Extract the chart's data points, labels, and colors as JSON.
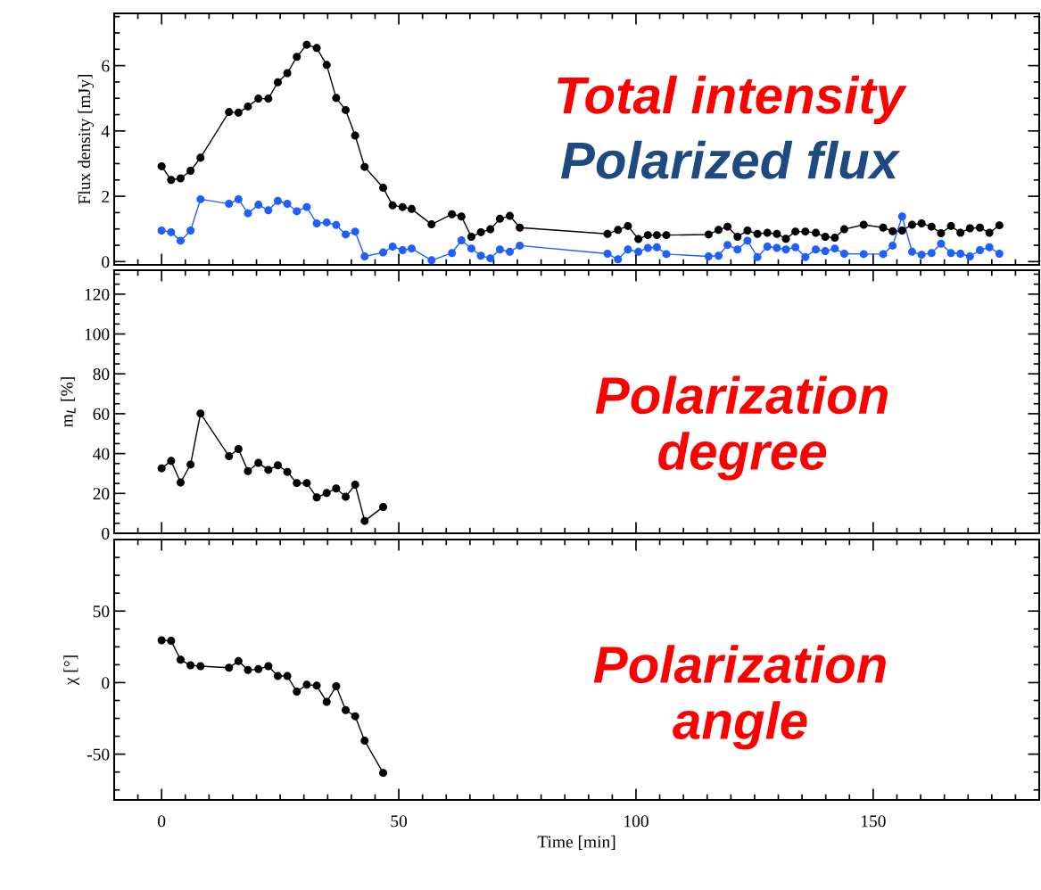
{
  "chart_data": [
    {
      "type": "line",
      "ylabel": "Flux density [mJy]",
      "annotations": [
        "Total intensity",
        "Polarized flux"
      ],
      "marker": "circle",
      "line_style": "solid",
      "grid": false,
      "legend": false,
      "tick_labels": "y",
      "xlim": [
        -10,
        185
      ],
      "ylim": [
        -0.1,
        7.6
      ],
      "xticks": [
        {
          "value": -5,
          "label": null
        },
        0,
        {
          "value": 5,
          "label": null
        },
        {
          "value": 10,
          "label": null
        },
        {
          "value": 15,
          "label": null
        },
        {
          "value": 20,
          "label": null
        },
        {
          "value": 25,
          "label": null
        },
        {
          "value": 30,
          "label": null
        },
        {
          "value": 35,
          "label": null
        },
        {
          "value": 40,
          "label": null
        },
        {
          "value": 45,
          "label": null
        },
        50,
        {
          "value": 55,
          "label": null
        },
        {
          "value": 60,
          "label": null
        },
        {
          "value": 65,
          "label": null
        },
        {
          "value": 70,
          "label": null
        },
        {
          "value": 75,
          "label": null
        },
        {
          "value": 80,
          "label": null
        },
        {
          "value": 85,
          "label": null
        },
        {
          "value": 90,
          "label": null
        },
        {
          "value": 95,
          "label": null
        },
        100,
        {
          "value": 105,
          "label": null
        },
        {
          "value": 110,
          "label": null
        },
        {
          "value": 115,
          "label": null
        },
        {
          "value": 120,
          "label": null
        },
        {
          "value": 125,
          "label": null
        },
        {
          "value": 130,
          "label": null
        },
        {
          "value": 135,
          "label": null
        },
        {
          "value": 140,
          "label": null
        },
        {
          "value": 145,
          "label": null
        },
        150,
        {
          "value": 155,
          "label": null
        },
        {
          "value": 160,
          "label": null
        },
        {
          "value": 165,
          "label": null
        },
        {
          "value": 170,
          "label": null
        },
        {
          "value": 175,
          "label": null
        },
        {
          "value": 180,
          "label": null
        }
      ],
      "yticks": [
        0,
        {
          "value": 0.5,
          "label": null
        },
        {
          "value": 1,
          "label": null
        },
        {
          "value": 1.5,
          "label": null
        },
        2,
        {
          "value": 2.5,
          "label": null
        },
        {
          "value": 3,
          "label": null
        },
        {
          "value": 3.5,
          "label": null
        },
        4,
        {
          "value": 4.5,
          "label": null
        },
        {
          "value": 5,
          "label": null
        },
        {
          "value": 5.5,
          "label": null
        },
        6,
        {
          "value": 6.5,
          "label": null
        },
        {
          "value": 7,
          "label": null
        },
        {
          "value": 7.5,
          "label": null
        }
      ],
      "x": [
        0,
        2,
        4,
        6.1,
        8.2,
        14.2,
        16.2,
        18.2,
        20.4,
        22.5,
        24.5,
        26.5,
        28.5,
        30.6,
        32.7,
        34.8,
        36.8,
        38.8,
        40.8,
        42.8,
        46.7,
        48.7,
        50.8,
        52.7,
        56.9,
        61.2,
        63.2,
        65.3,
        67.3,
        69.3,
        71.3,
        73.4,
        75.5,
        94.0,
        96.2,
        98.3,
        100.5,
        102.5,
        104.4,
        106.4,
        115.3,
        117.4,
        119.3,
        121.4,
        123.5,
        125.6,
        127.7,
        129.7,
        131.6,
        133.6,
        135.7,
        137.9,
        139.9,
        141.9,
        143.9,
        148.0,
        152.1,
        154.1,
        156.1,
        158.2,
        160.2,
        162.3,
        164.3,
        166.4,
        168.4,
        170.4,
        172.5,
        174.5,
        176.6
      ],
      "series": [
        {
          "color": "#000000",
          "values": [
            2.92,
            2.5,
            2.55,
            2.78,
            3.18,
            4.58,
            4.56,
            4.75,
            4.99,
            4.99,
            5.49,
            5.77,
            6.27,
            6.64,
            6.54,
            6.02,
            5.01,
            4.64,
            3.86,
            2.9,
            2.26,
            1.72,
            1.67,
            1.61,
            1.14,
            1.45,
            1.38,
            0.76,
            0.9,
            0.99,
            1.31,
            1.4,
            1.04,
            0.85,
            0.97,
            1.09,
            0.69,
            0.81,
            0.81,
            0.81,
            0.83,
            0.97,
            1.07,
            0.76,
            0.95,
            0.85,
            0.88,
            0.85,
            0.7,
            0.92,
            0.92,
            0.88,
            0.76,
            0.73,
            0.99,
            1.13,
            1.04,
            0.93,
            0.95,
            1.13,
            1.17,
            1.07,
            0.87,
            1.09,
            0.88,
            1.02,
            1.04,
            0.88,
            1.11
          ]
        },
        {
          "color": "#1f5fff",
          "values": [
            0.95,
            0.9,
            0.64,
            0.95,
            1.91,
            1.77,
            1.91,
            1.48,
            1.74,
            1.57,
            1.86,
            1.77,
            1.54,
            1.67,
            1.17,
            1.2,
            1.12,
            0.83,
            0.92,
            0.16,
            0.28,
            0.46,
            0.35,
            0.4,
            0.04,
            0.26,
            0.65,
            0.4,
            0.18,
            0.1,
            0.37,
            0.3,
            0.49,
            0.24,
            0.07,
            0.37,
            0.3,
            0.42,
            0.44,
            0.23,
            0.16,
            0.18,
            0.51,
            0.37,
            0.64,
            0.14,
            0.46,
            0.42,
            0.37,
            0.44,
            0.14,
            0.37,
            0.32,
            0.4,
            0.24,
            0.23,
            0.23,
            0.49,
            1.38,
            0.3,
            0.21,
            0.26,
            0.55,
            0.26,
            0.24,
            0.16,
            0.35,
            0.44,
            0.24
          ]
        }
      ]
    },
    {
      "type": "line",
      "ylabel": "m$_{L}$ [%]",
      "annotations": [
        "Polarization degree"
      ],
      "marker": "circle",
      "line_style": "solid",
      "grid": false,
      "legend": false,
      "tick_labels": "y",
      "xlim": [
        -10,
        185
      ],
      "ylim": [
        0,
        132
      ],
      "xticks": [
        {
          "value": -5,
          "label": null
        },
        0,
        {
          "value": 5,
          "label": null
        },
        {
          "value": 10,
          "label": null
        },
        {
          "value": 15,
          "label": null
        },
        {
          "value": 20,
          "label": null
        },
        {
          "value": 25,
          "label": null
        },
        {
          "value": 30,
          "label": null
        },
        {
          "value": 35,
          "label": null
        },
        {
          "value": 40,
          "label": null
        },
        {
          "value": 45,
          "label": null
        },
        50,
        {
          "value": 55,
          "label": null
        },
        {
          "value": 60,
          "label": null
        },
        {
          "value": 65,
          "label": null
        },
        {
          "value": 70,
          "label": null
        },
        {
          "value": 75,
          "label": null
        },
        {
          "value": 80,
          "label": null
        },
        {
          "value": 85,
          "label": null
        },
        {
          "value": 90,
          "label": null
        },
        {
          "value": 95,
          "label": null
        },
        100,
        {
          "value": 105,
          "label": null
        },
        {
          "value": 110,
          "label": null
        },
        {
          "value": 115,
          "label": null
        },
        {
          "value": 120,
          "label": null
        },
        {
          "value": 125,
          "label": null
        },
        {
          "value": 130,
          "label": null
        },
        {
          "value": 135,
          "label": null
        },
        {
          "value": 140,
          "label": null
        },
        {
          "value": 145,
          "label": null
        },
        150,
        {
          "value": 155,
          "label": null
        },
        {
          "value": 160,
          "label": null
        },
        {
          "value": 165,
          "label": null
        },
        {
          "value": 170,
          "label": null
        },
        {
          "value": 175,
          "label": null
        },
        {
          "value": 180,
          "label": null
        }
      ],
      "yticks": [
        0,
        {
          "value": 5,
          "label": null
        },
        {
          "value": 10,
          "label": null
        },
        {
          "value": 15,
          "label": null
        },
        20,
        {
          "value": 25,
          "label": null
        },
        {
          "value": 30,
          "label": null
        },
        {
          "value": 35,
          "label": null
        },
        40,
        {
          "value": 45,
          "label": null
        },
        {
          "value": 50,
          "label": null
        },
        {
          "value": 55,
          "label": null
        },
        60,
        {
          "value": 65,
          "label": null
        },
        {
          "value": 70,
          "label": null
        },
        {
          "value": 75,
          "label": null
        },
        80,
        {
          "value": 85,
          "label": null
        },
        {
          "value": 90,
          "label": null
        },
        {
          "value": 95,
          "label": null
        },
        100,
        {
          "value": 105,
          "label": null
        },
        {
          "value": 110,
          "label": null
        },
        {
          "value": 115,
          "label": null
        },
        120,
        {
          "value": 125,
          "label": null
        },
        {
          "value": 130,
          "label": null
        }
      ],
      "x": [
        0,
        2,
        4,
        6.1,
        8.2,
        14.2,
        16.2,
        18.2,
        20.4,
        22.5,
        24.5,
        26.5,
        28.5,
        30.6,
        32.7,
        34.8,
        36.8,
        38.8,
        40.8,
        42.8,
        46.7
      ],
      "series": [
        {
          "color": "#000000",
          "values": [
            32.6,
            36.3,
            25.5,
            34.5,
            60.1,
            38.7,
            42.3,
            31.2,
            35.3,
            31.8,
            34.1,
            30.8,
            25.2,
            25.2,
            18.0,
            20.2,
            22.5,
            18.3,
            24.4,
            6.2,
            13.2
          ]
        }
      ]
    },
    {
      "type": "line",
      "ylabel": "χ [°]",
      "xlabel": "Time [min]",
      "annotations": [
        "Polarization angle"
      ],
      "marker": "circle",
      "line_style": "solid",
      "grid": false,
      "legend": false,
      "xlim": [
        -10,
        185
      ],
      "ylim": [
        -82,
        100
      ],
      "xticks": [
        {
          "value": -5,
          "label": null
        },
        0,
        {
          "value": 5,
          "label": null
        },
        {
          "value": 10,
          "label": null
        },
        {
          "value": 15,
          "label": null
        },
        {
          "value": 20,
          "label": null
        },
        {
          "value": 25,
          "label": null
        },
        {
          "value": 30,
          "label": null
        },
        {
          "value": 35,
          "label": null
        },
        {
          "value": 40,
          "label": null
        },
        {
          "value": 45,
          "label": null
        },
        50,
        {
          "value": 55,
          "label": null
        },
        {
          "value": 60,
          "label": null
        },
        {
          "value": 65,
          "label": null
        },
        {
          "value": 70,
          "label": null
        },
        {
          "value": 75,
          "label": null
        },
        {
          "value": 80,
          "label": null
        },
        {
          "value": 85,
          "label": null
        },
        {
          "value": 90,
          "label": null
        },
        {
          "value": 95,
          "label": null
        },
        100,
        {
          "value": 105,
          "label": null
        },
        {
          "value": 110,
          "label": null
        },
        {
          "value": 115,
          "label": null
        },
        {
          "value": 120,
          "label": null
        },
        {
          "value": 125,
          "label": null
        },
        {
          "value": 130,
          "label": null
        },
        {
          "value": 135,
          "label": null
        },
        {
          "value": 140,
          "label": null
        },
        {
          "value": 145,
          "label": null
        },
        150,
        {
          "value": 155,
          "label": null
        },
        {
          "value": 160,
          "label": null
        },
        {
          "value": 165,
          "label": null
        },
        {
          "value": 170,
          "label": null
        },
        {
          "value": 175,
          "label": null
        },
        {
          "value": 180,
          "label": null
        }
      ],
      "yticks": [
        {
          "value": -75,
          "label": null
        },
        {
          "value": -62.5,
          "label": null
        },
        -50,
        {
          "value": -37.5,
          "label": null
        },
        {
          "value": -25,
          "label": null
        },
        {
          "value": -12.5,
          "label": null
        },
        0,
        {
          "value": 12.5,
          "label": null
        },
        {
          "value": 25,
          "label": null
        },
        {
          "value": 37.5,
          "label": null
        },
        50,
        {
          "value": 62.5,
          "label": null
        },
        {
          "value": 75,
          "label": null
        },
        {
          "value": 87.5,
          "label": null
        }
      ],
      "x": [
        0,
        2,
        4,
        6.1,
        8.2,
        14.2,
        16.2,
        18.2,
        20.4,
        22.5,
        24.5,
        26.5,
        28.5,
        30.6,
        32.7,
        34.8,
        36.8,
        38.8,
        40.8,
        42.8,
        46.7
      ],
      "series": [
        {
          "color": "#000000",
          "values": [
            29.6,
            29.2,
            16.0,
            12.1,
            11.5,
            10.4,
            15.0,
            8.8,
            9.4,
            11.5,
            4.6,
            4.6,
            -6.3,
            -1.5,
            -2.1,
            -13.5,
            -2.5,
            -19.2,
            -23.5,
            -40.6,
            -63.1
          ]
        }
      ]
    }
  ]
}
